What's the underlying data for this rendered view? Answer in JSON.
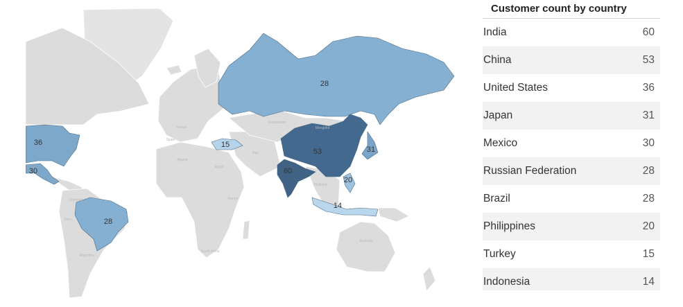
{
  "map": {
    "regions": [
      {
        "country": "United States",
        "value": 36,
        "color": "#7ea8c9"
      },
      {
        "country": "Mexico",
        "value": 30,
        "color": "#7ea8c9"
      },
      {
        "country": "Brazil",
        "value": 28,
        "color": "#86b0d1"
      },
      {
        "country": "Russian Federation",
        "value": 28,
        "color": "#86b0d1"
      },
      {
        "country": "Turkey",
        "value": 15,
        "color": "#b5d3e9"
      },
      {
        "country": "China",
        "value": 53,
        "color": "#44698f"
      },
      {
        "country": "India",
        "value": 60,
        "color": "#3f6285"
      },
      {
        "country": "Japan",
        "value": 31,
        "color": "#7aa5c8"
      },
      {
        "country": "Philippines",
        "value": 20,
        "color": "#9fc2de"
      },
      {
        "country": "Indonesia",
        "value": 14,
        "color": "#b8d6ec"
      }
    ],
    "place_labels": [
      "France",
      "Spain",
      "Algeria",
      "Egypt",
      "Iran",
      "Kazakhstan",
      "Mongolia",
      "Colombia",
      "Argentina",
      "Australia",
      "Thailand",
      "Peru",
      "South Africa",
      "Kenya"
    ]
  },
  "table": {
    "title": "Customer count by country",
    "rows": [
      {
        "country": "India",
        "count": "60"
      },
      {
        "country": "China",
        "count": "53"
      },
      {
        "country": "United States",
        "count": "36"
      },
      {
        "country": "Japan",
        "count": "31"
      },
      {
        "country": "Mexico",
        "count": "30"
      },
      {
        "country": "Russian Federation",
        "count": "28"
      },
      {
        "country": "Brazil",
        "count": "28"
      },
      {
        "country": "Philippines",
        "count": "20"
      },
      {
        "country": "Turkey",
        "count": "15"
      },
      {
        "country": "Indonesia",
        "count": "14"
      }
    ]
  }
}
